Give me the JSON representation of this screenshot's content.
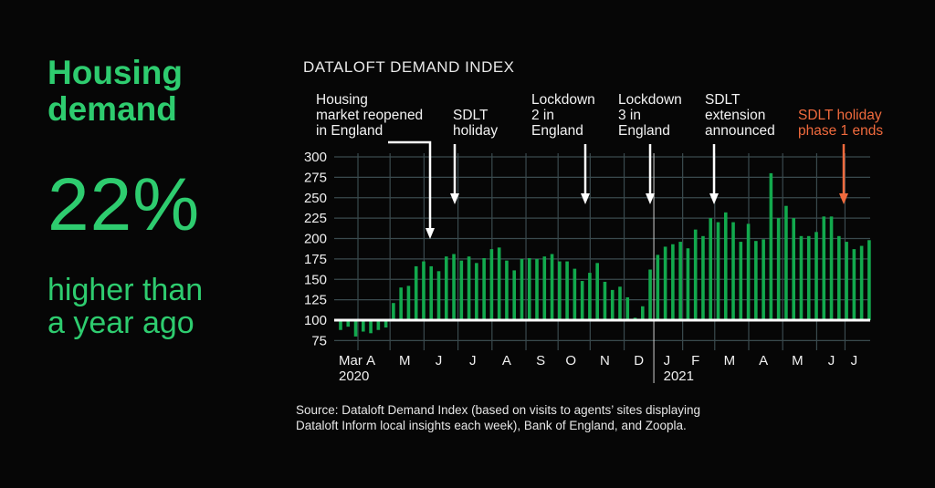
{
  "left_panel": {
    "headline_line1": "Housing",
    "headline_line2": "demand",
    "big_stat": "22%",
    "sub_line1": "higher than",
    "sub_line2": "a year ago"
  },
  "colors": {
    "accent": "#2ecc6f",
    "bar": "#12a94d",
    "highlight": "#f06a3d",
    "grid": "#3a4a4e",
    "background": "#060606"
  },
  "annotations": [
    {
      "label": "Housing\nmarket reopened\nin England",
      "color": "white",
      "at_bar": 12
    },
    {
      "label": "SDLT\nholiday",
      "color": "white",
      "at_bar": 16
    },
    {
      "label": "Lockdown\n2 in\nEngland",
      "color": "white",
      "at_bar": 34
    },
    {
      "label": "Lockdown\n3 in\nEngland",
      "color": "white",
      "at_bar": 41
    },
    {
      "label": "SDLT\nextension\nannounced",
      "color": "white",
      "at_bar": 49
    },
    {
      "label": "SDLT holiday\nphase 1 ends",
      "color": "orange",
      "at_bar": 66
    }
  ],
  "source": {
    "line1": "Source: Dataloft Demand Index (based on visits to agents’ sites displaying",
    "line2": "Dataloft Inform local insights each week), Bank of England, and Zoopla."
  },
  "chart_data": {
    "type": "bar",
    "title": "DATALOFT DEMAND INDEX",
    "xlabel": "",
    "ylabel": "",
    "baseline": 100,
    "ylim": [
      70,
      300
    ],
    "yticks": [
      75,
      100,
      125,
      150,
      175,
      200,
      225,
      250,
      275,
      300
    ],
    "grid": true,
    "x_month_labels": [
      {
        "label": "Mar",
        "year": "2020",
        "bar": 0
      },
      {
        "label": "A",
        "bar": 4
      },
      {
        "label": "M",
        "bar": 8.5
      },
      {
        "label": "J",
        "bar": 13
      },
      {
        "label": "J",
        "bar": 17.5
      },
      {
        "label": "A",
        "bar": 22
      },
      {
        "label": "S",
        "bar": 26.5
      },
      {
        "label": "O",
        "bar": 30.5
      },
      {
        "label": "N",
        "bar": 35
      },
      {
        "label": "D",
        "bar": 39.5
      },
      {
        "label": "J",
        "year": "2021",
        "bar": 43
      },
      {
        "label": "F",
        "bar": 47
      },
      {
        "label": "M",
        "bar": 51.5
      },
      {
        "label": "A",
        "bar": 56
      },
      {
        "label": "M",
        "bar": 60.5
      },
      {
        "label": "J",
        "bar": 65
      },
      {
        "label": "J",
        "bar": 68
      }
    ],
    "year_divider_bar": 41,
    "values": [
      88,
      92,
      80,
      86,
      84,
      88,
      91,
      121,
      140,
      142,
      166,
      172,
      166,
      160,
      178,
      181,
      173,
      178,
      170,
      176,
      187,
      189,
      173,
      161,
      175,
      176,
      175,
      178,
      181,
      172,
      172,
      163,
      148,
      158,
      170,
      147,
      137,
      141,
      128,
      103,
      117,
      162,
      180,
      190,
      193,
      196,
      188,
      211,
      203,
      225,
      220,
      232,
      220,
      196,
      218,
      197,
      199,
      280,
      225,
      240,
      225,
      203,
      203,
      208,
      227,
      227,
      203,
      196,
      187,
      191,
      198
    ]
  }
}
